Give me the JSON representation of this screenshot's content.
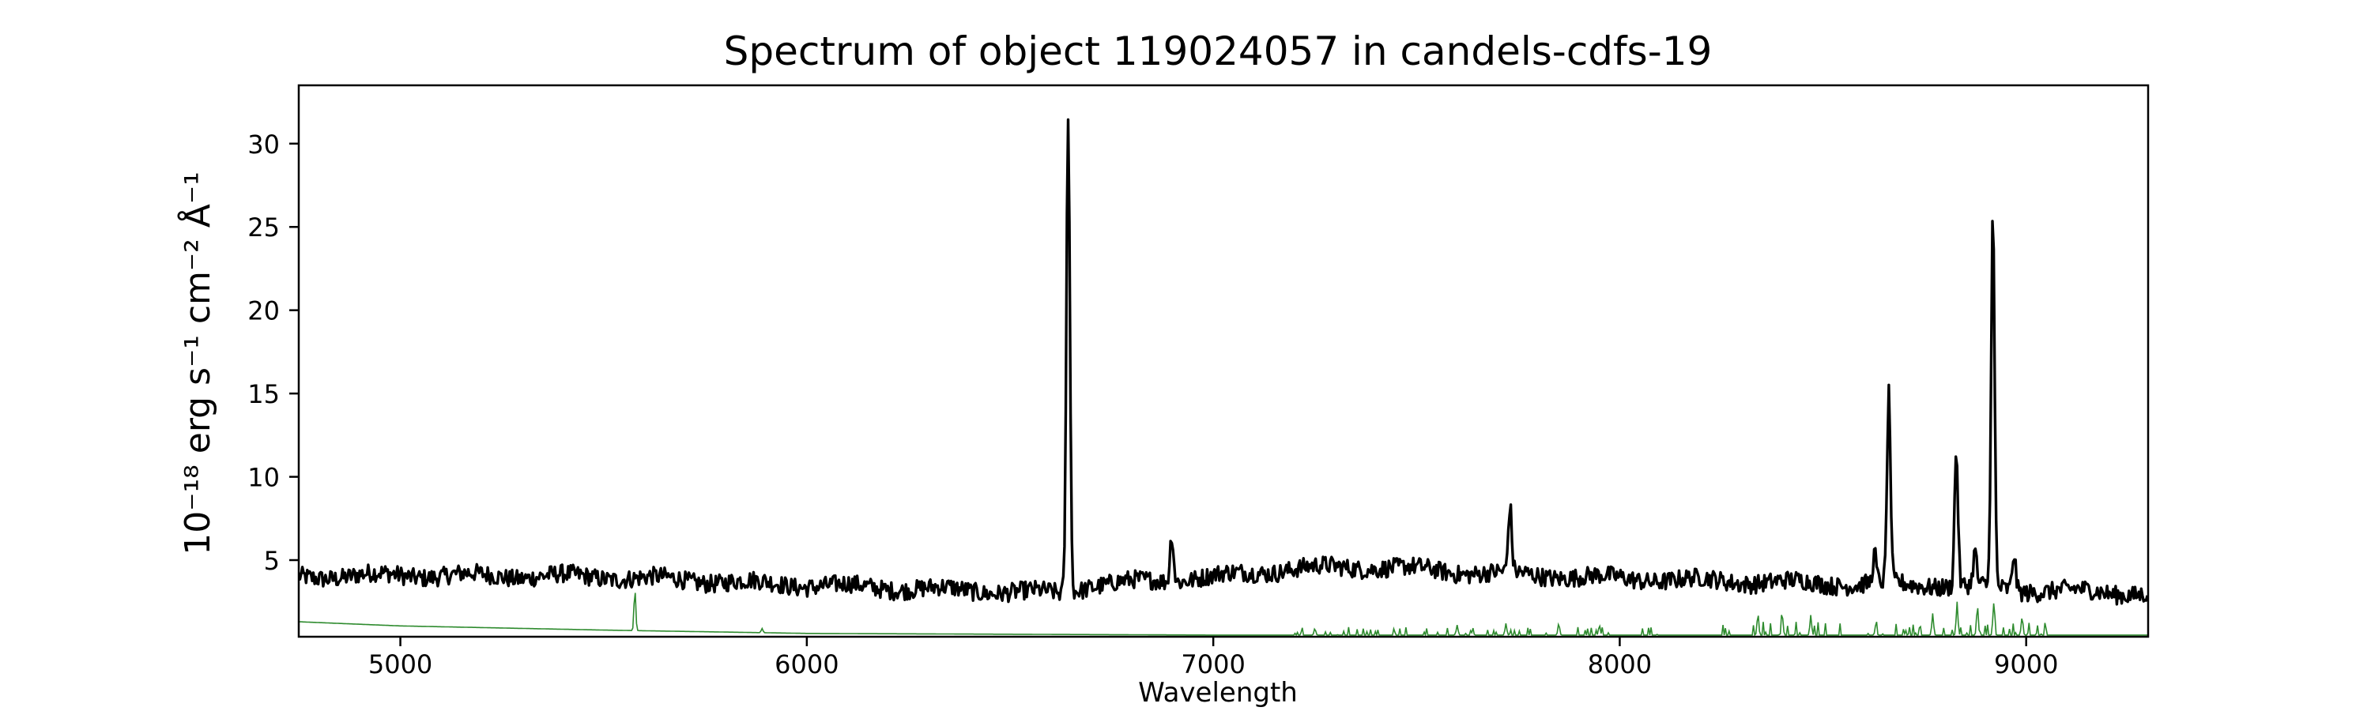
{
  "chart_data": {
    "type": "line",
    "title": "Spectrum of object 119024057 in candels-cdfs-19",
    "xlabel": "Wavelength",
    "ylabel": "10⁻¹⁸ erg s⁻¹ cm⁻² Å⁻¹",
    "xlim": [
      4750,
      9300
    ],
    "ylim": [
      0.4,
      33.5
    ],
    "xticks": [
      5000,
      6000,
      7000,
      8000,
      9000
    ],
    "yticks": [
      5,
      10,
      15,
      20,
      25,
      30
    ],
    "grid": false,
    "series": [
      {
        "color": "#000000",
        "continuum": [
          [
            4750,
            4.0
          ],
          [
            5000,
            4.1
          ],
          [
            5500,
            4.0
          ],
          [
            6000,
            3.5
          ],
          [
            6500,
            3.1
          ],
          [
            6620,
            3.0
          ],
          [
            6700,
            3.5
          ],
          [
            7000,
            4.0
          ],
          [
            7200,
            4.5
          ],
          [
            7400,
            4.6
          ],
          [
            7600,
            4.3
          ],
          [
            8000,
            3.9
          ],
          [
            8500,
            3.6
          ],
          [
            8800,
            3.5
          ],
          [
            9000,
            3.2
          ],
          [
            9300,
            3.0
          ]
        ],
        "emission_lines": [
          {
            "x": 6643,
            "peak": 32.0
          },
          {
            "x": 6898,
            "peak": 6.7
          },
          {
            "x": 7730,
            "peak": 8.1
          },
          {
            "x": 8627,
            "peak": 5.3
          },
          {
            "x": 8662,
            "peak": 14.8
          },
          {
            "x": 8828,
            "peak": 11.6
          },
          {
            "x": 8874,
            "peak": 5.4
          },
          {
            "x": 8918,
            "peak": 25.6
          },
          {
            "x": 8970,
            "peak": 5.5
          }
        ]
      },
      {
        "color": "#2e8b2e",
        "baseline": [
          [
            4750,
            1.3
          ],
          [
            5000,
            1.05
          ],
          [
            5500,
            0.8
          ],
          [
            6000,
            0.6
          ],
          [
            7000,
            0.5
          ],
          [
            9300,
            0.5
          ]
        ],
        "emission_lines": [
          {
            "x": 5577,
            "peak": 3.3
          },
          {
            "x": 5890,
            "peak": 0.9
          },
          {
            "x": 7250,
            "peak": 0.9
          },
          {
            "x": 7600,
            "peak": 1.1
          },
          {
            "x": 7720,
            "peak": 1.2
          },
          {
            "x": 7850,
            "peak": 1.2
          },
          {
            "x": 7950,
            "peak": 1.1
          },
          {
            "x": 8340,
            "peak": 1.8
          },
          {
            "x": 8400,
            "peak": 1.6
          },
          {
            "x": 8470,
            "peak": 1.7
          },
          {
            "x": 8630,
            "peak": 1.1
          },
          {
            "x": 8770,
            "peak": 1.8
          },
          {
            "x": 8830,
            "peak": 2.5
          },
          {
            "x": 8880,
            "peak": 2.3
          },
          {
            "x": 8920,
            "peak": 2.4
          },
          {
            "x": 8990,
            "peak": 1.6
          }
        ]
      }
    ]
  }
}
